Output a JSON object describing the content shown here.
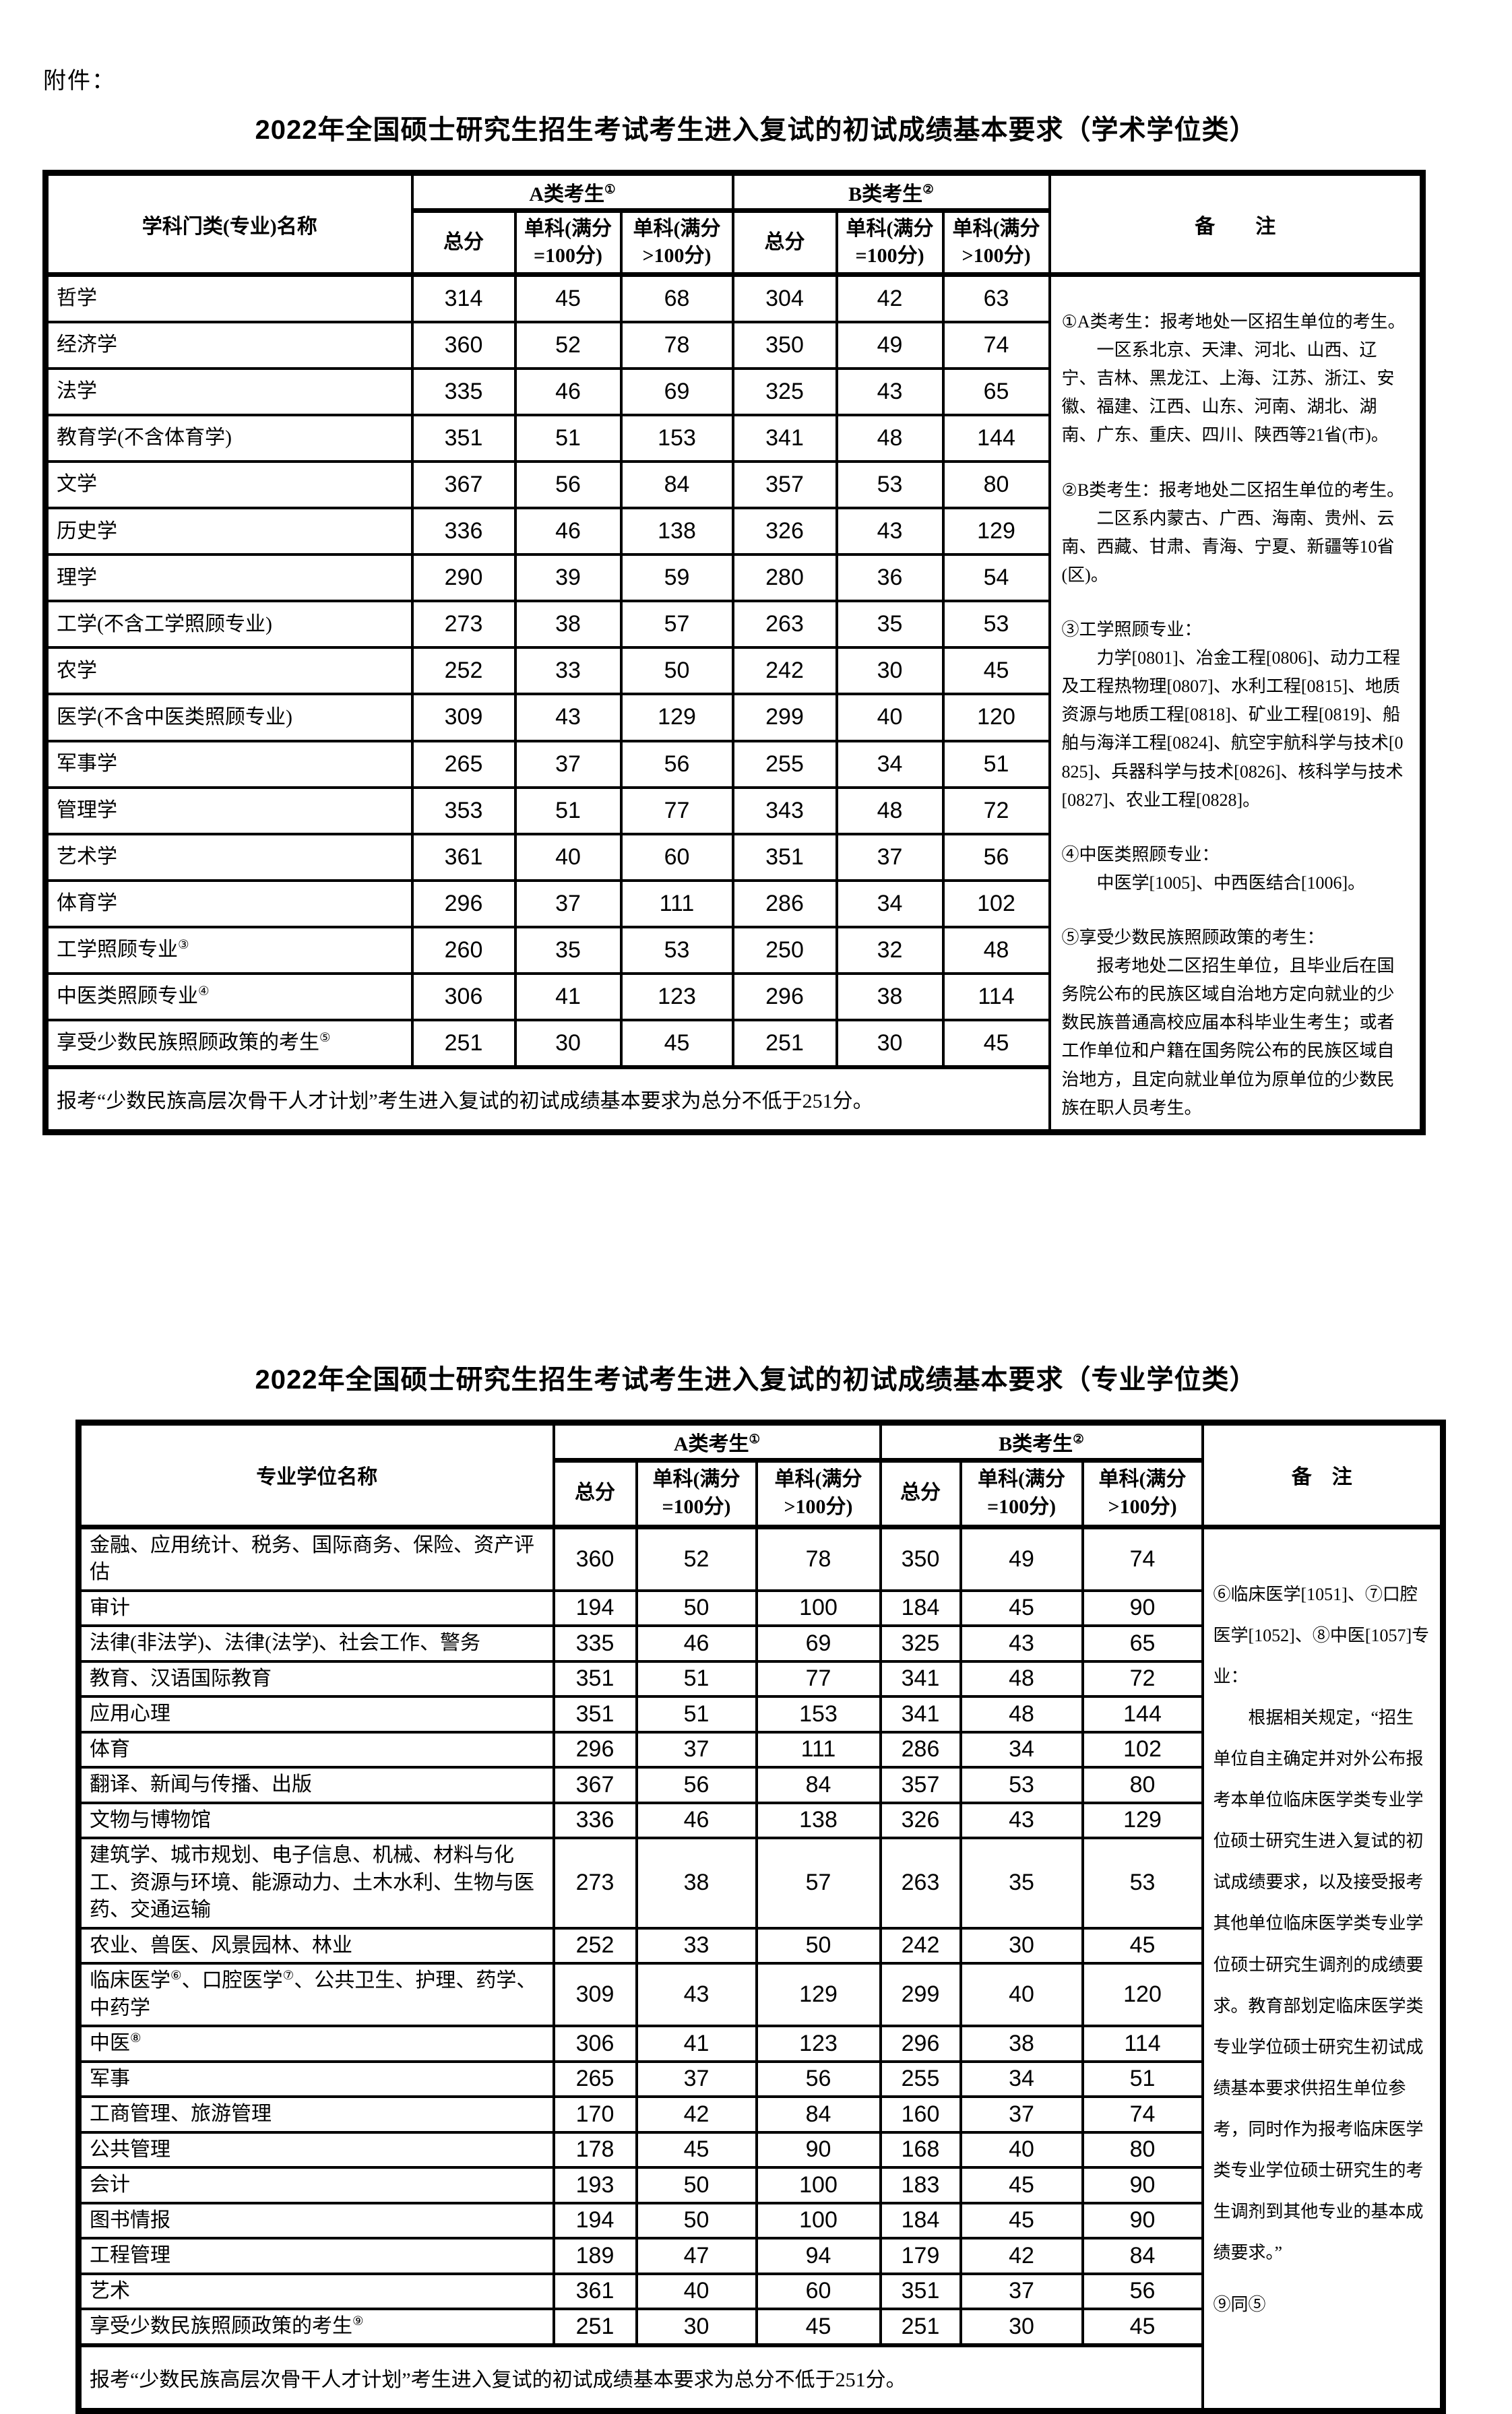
{
  "page": {
    "attachment_label": "附件："
  },
  "academic": {
    "title": "2022年全国硕士研究生招生考试考生进入复试的初试成绩基本要求（学术学位类）",
    "header": {
      "name_col": "学科门类(专业)名称",
      "group_a": "A类考生①",
      "group_b": "B类考生②",
      "remark_col": "备　　注",
      "sub_cols": [
        "总分",
        "单科(满分\n=100分)",
        "单科(满分\n>100分)",
        "总分",
        "单科(满分\n=100分)",
        "单科(满分\n>100分)"
      ]
    },
    "rows": [
      {
        "label": "哲学",
        "values": [
          314,
          45,
          68,
          304,
          42,
          63
        ]
      },
      {
        "label": "经济学",
        "values": [
          360,
          52,
          78,
          350,
          49,
          74
        ]
      },
      {
        "label": "法学",
        "values": [
          335,
          46,
          69,
          325,
          43,
          65
        ]
      },
      {
        "label": "教育学(不含体育学)",
        "values": [
          351,
          51,
          153,
          341,
          48,
          144
        ]
      },
      {
        "label": "文学",
        "values": [
          367,
          56,
          84,
          357,
          53,
          80
        ]
      },
      {
        "label": "历史学",
        "values": [
          336,
          46,
          138,
          326,
          43,
          129
        ]
      },
      {
        "label": "理学",
        "values": [
          290,
          39,
          59,
          280,
          36,
          54
        ]
      },
      {
        "label": "工学(不含工学照顾专业)",
        "values": [
          273,
          38,
          57,
          263,
          35,
          53
        ]
      },
      {
        "label": "农学",
        "values": [
          252,
          33,
          50,
          242,
          30,
          45
        ]
      },
      {
        "label": "医学(不含中医类照顾专业)",
        "values": [
          309,
          43,
          129,
          299,
          40,
          120
        ]
      },
      {
        "label": "军事学",
        "values": [
          265,
          37,
          56,
          255,
          34,
          51
        ]
      },
      {
        "label": "管理学",
        "values": [
          353,
          51,
          77,
          343,
          48,
          72
        ]
      },
      {
        "label": "艺术学",
        "values": [
          361,
          40,
          60,
          351,
          37,
          56
        ]
      },
      {
        "label": "体育学",
        "values": [
          296,
          37,
          111,
          286,
          34,
          102
        ]
      },
      {
        "label": "工学照顾专业③",
        "values": [
          260,
          35,
          53,
          250,
          32,
          48
        ]
      },
      {
        "label": "中医类照顾专业④",
        "values": [
          306,
          41,
          123,
          296,
          38,
          114
        ]
      },
      {
        "label": "享受少数民族照顾政策的考生⑤",
        "values": [
          251,
          30,
          45,
          251,
          30,
          45
        ]
      }
    ],
    "footnote": "报考“少数民族高层次骨干人才计划”考生进入复试的初试成绩基本要求为总分不低于251分。",
    "remark_paragraphs": [
      {
        "text": "①A类考生：报考地处一区招生单位的考生。",
        "indent": false,
        "gap": false
      },
      {
        "text": "一区系北京、天津、河北、山西、辽宁、吉林、黑龙江、上海、江苏、浙江、安徽、福建、江西、山东、河南、湖北、湖南、广东、重庆、四川、陕西等21省(市)。",
        "indent": true,
        "gap": false
      },
      {
        "text": "②B类考生：报考地处二区招生单位的考生。",
        "indent": false,
        "gap": true
      },
      {
        "text": "二区系内蒙古、广西、海南、贵州、云南、西藏、甘肃、青海、宁夏、新疆等10省(区)。",
        "indent": true,
        "gap": false
      },
      {
        "text": "③工学照顾专业：",
        "indent": false,
        "gap": true
      },
      {
        "text": "力学[0801]、冶金工程[0806]、动力工程及工程热物理[0807]、水利工程[0815]、地质资源与地质工程[0818]、矿业工程[0819]、船舶与海洋工程[0824]、航空宇航科学与技术[0825]、兵器科学与技术[0826]、核科学与技术[0827]、农业工程[0828]。",
        "indent": true,
        "gap": false
      },
      {
        "text": "④中医类照顾专业：",
        "indent": false,
        "gap": true
      },
      {
        "text": "中医学[1005]、中西医结合[1006]。",
        "indent": true,
        "gap": false
      },
      {
        "text": "⑤享受少数民族照顾政策的考生：",
        "indent": false,
        "gap": true
      },
      {
        "text": "报考地处二区招生单位，且毕业后在国务院公布的民族区域自治地方定向就业的少数民族普通高校应届本科毕业生考生；或者工作单位和户籍在国务院公布的民族区域自治地方，且定向就业单位为原单位的少数民族在职人员考生。",
        "indent": true,
        "gap": false
      }
    ]
  },
  "professional": {
    "title": "2022年全国硕士研究生招生考试考生进入复试的初试成绩基本要求（专业学位类）",
    "header": {
      "name_col": "专业学位名称",
      "group_a": "A类考生①",
      "group_b": "B类考生②",
      "remark_col": "备　注",
      "sub_cols": [
        "总分",
        "单科(满分\n=100分)",
        "单科(满分\n>100分)",
        "总分",
        "单科(满分\n=100分)",
        "单科(满分\n>100分)"
      ]
    },
    "rows": [
      {
        "label": "金融、应用统计、税务、国际商务、保险、资产评估",
        "values": [
          360,
          52,
          78,
          350,
          49,
          74
        ]
      },
      {
        "label": "审计",
        "values": [
          194,
          50,
          100,
          184,
          45,
          90
        ]
      },
      {
        "label": "法律(非法学)、法律(法学)、社会工作、警务",
        "values": [
          335,
          46,
          69,
          325,
          43,
          65
        ]
      },
      {
        "label": "教育、汉语国际教育",
        "values": [
          351,
          51,
          77,
          341,
          48,
          72
        ]
      },
      {
        "label": "应用心理",
        "values": [
          351,
          51,
          153,
          341,
          48,
          144
        ]
      },
      {
        "label": "体育",
        "values": [
          296,
          37,
          111,
          286,
          34,
          102
        ]
      },
      {
        "label": "翻译、新闻与传播、出版",
        "values": [
          367,
          56,
          84,
          357,
          53,
          80
        ]
      },
      {
        "label": "文物与博物馆",
        "values": [
          336,
          46,
          138,
          326,
          43,
          129
        ]
      },
      {
        "label": "建筑学、城市规划、电子信息、机械、材料与化工、资源与环境、能源动力、土木水利、生物与医药、交通运输",
        "values": [
          273,
          38,
          57,
          263,
          35,
          53
        ]
      },
      {
        "label": "农业、兽医、风景园林、林业",
        "values": [
          252,
          33,
          50,
          242,
          30,
          45
        ]
      },
      {
        "label": "临床医学⑥、口腔医学⑦、公共卫生、护理、药学、中药学",
        "values": [
          309,
          43,
          129,
          299,
          40,
          120
        ]
      },
      {
        "label": "中医⑧",
        "values": [
          306,
          41,
          123,
          296,
          38,
          114
        ]
      },
      {
        "label": "军事",
        "values": [
          265,
          37,
          56,
          255,
          34,
          51
        ]
      },
      {
        "label": "工商管理、旅游管理",
        "values": [
          170,
          42,
          84,
          160,
          37,
          74
        ]
      },
      {
        "label": "公共管理",
        "values": [
          178,
          45,
          90,
          168,
          40,
          80
        ]
      },
      {
        "label": "会计",
        "values": [
          193,
          50,
          100,
          183,
          45,
          90
        ]
      },
      {
        "label": "图书情报",
        "values": [
          194,
          50,
          100,
          184,
          45,
          90
        ]
      },
      {
        "label": "工程管理",
        "values": [
          189,
          47,
          94,
          179,
          42,
          84
        ]
      },
      {
        "label": "艺术",
        "values": [
          361,
          40,
          60,
          351,
          37,
          56
        ]
      },
      {
        "label": "享受少数民族照顾政策的考生⑨",
        "values": [
          251,
          30,
          45,
          251,
          30,
          45
        ]
      }
    ],
    "footnote": "报考“少数民族高层次骨干人才计划”考生进入复试的初试成绩基本要求为总分不低于251分。",
    "remark_paragraphs": [
      {
        "text": "⑥临床医学[1051]、⑦口腔医学[1052]、⑧中医[1057]专业：",
        "indent": false,
        "gap": false
      },
      {
        "text": "根据相关规定，“招生单位自主确定并对外公布报考本单位临床医学类专业学位硕士研究生进入复试的初试成绩要求，以及接受报考其他单位临床医学类专业学位硕士研究生调剂的成绩要求。教育部划定临床医学类专业学位硕士研究生初试成绩基本要求供招生单位参考，同时作为报考临床医学类专业学位硕士研究生的考生调剂到其他专业的基本成绩要求。”",
        "indent": true,
        "gap": false
      },
      {
        "text": "⑨同⑤",
        "indent": false,
        "gap": true
      }
    ]
  }
}
